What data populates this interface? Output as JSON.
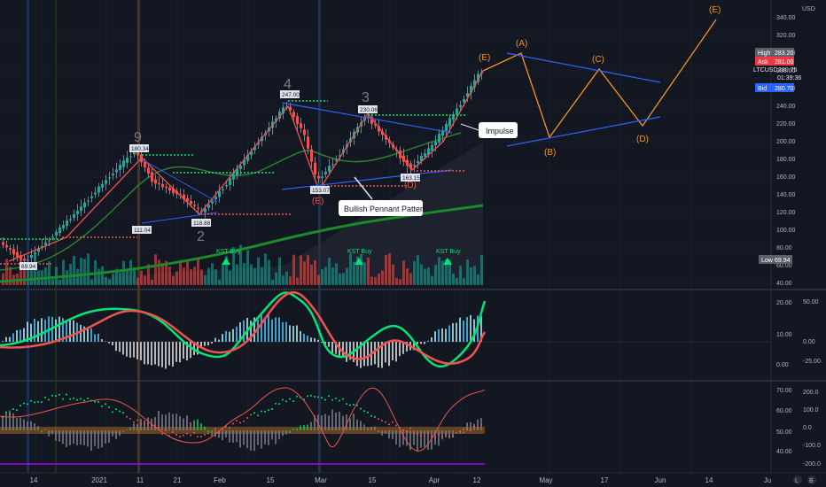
{
  "price_axis": {
    "currency": "USD",
    "ticks": [
      "340.00",
      "320.00",
      "300.00",
      "280.00",
      "260.00",
      "240.00",
      "220.00",
      "200.00",
      "180.00",
      "160.00",
      "140.00",
      "120.00",
      "100.00",
      "80.00",
      "60.00",
      "40.00"
    ],
    "high_label": "High",
    "high_value": "283.20",
    "ask_label": "Ask",
    "ask_value": "281.00",
    "symbol": "LTCUSD",
    "last_value": "280.75",
    "countdown": "01:39:36",
    "bid_label": "Bid",
    "bid_value": "280.70",
    "low_label": "Low",
    "low_value": "69.94"
  },
  "osc1_axis": {
    "left_ticks": [
      "20.00",
      "10.00",
      "0.00"
    ],
    "right_ticks": [
      "50.00",
      "0.00",
      "-25.00"
    ]
  },
  "osc2_axis": {
    "left_ticks": [
      "70.00",
      "60.00",
      "50.00",
      "40.00"
    ],
    "right_ticks": [
      "200.0",
      "100.0",
      "0.0",
      "-100.0",
      "-200.0"
    ]
  },
  "time_axis": [
    "14",
    "2021",
    "11",
    "21",
    "Feb",
    "15",
    "Mar",
    "15",
    "Apr",
    "12",
    "May",
    "17",
    "Jun",
    "14",
    "Ju"
  ],
  "annotations": {
    "impulse": "Impulse",
    "pennant": "Bullish Pennant Pattern",
    "kst_buy": [
      "KST Buy",
      "KST Buy",
      "KST Buy"
    ],
    "waves": [
      "(A)",
      "(B)",
      "(C)",
      "(D)",
      "(E)",
      "(E)"
    ],
    "elliott_counts": [
      "9",
      "4",
      "3",
      "2"
    ],
    "price_labels": [
      "180.34",
      "247.00",
      "230.06",
      "111.04",
      "118.88",
      "153.07",
      "163.15",
      "69.94"
    ],
    "sub_labels": [
      "(E)",
      "(D)"
    ]
  },
  "colors": {
    "background": "#131722",
    "bull": "#26a69a",
    "bear": "#ef5350",
    "green_line": "#00e676",
    "wave_orange": "#f7931a",
    "channel_blue": "#2962ff",
    "high_badge": "#5d606b",
    "ask_badge": "#f23645",
    "bid_badge": "#2962ff"
  },
  "buttons": {
    "log": "L",
    "auto": "B"
  }
}
